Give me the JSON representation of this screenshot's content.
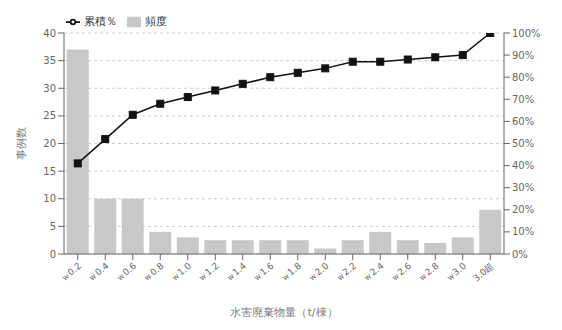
{
  "chart_data": {
    "type": "bar",
    "categories": [
      "ｗ0.2",
      "ｗ0.4",
      "ｗ0.6",
      "ｗ0.8",
      "ｗ1.0",
      "ｗ1.2",
      "ｗ1.4",
      "ｗ1.6",
      "ｗ1.8",
      "ｗ2.0",
      "ｗ2.2",
      "ｗ2.4",
      "ｗ2.6",
      "ｗ2.8",
      "ｗ3.0",
      "3.0超"
    ],
    "series": [
      {
        "name": "頻度",
        "type": "bar",
        "color": "#c8c8c8",
        "values": [
          37,
          10,
          10,
          4,
          3,
          2.5,
          2.5,
          2.5,
          2.5,
          1,
          2.5,
          4,
          2.5,
          2,
          3,
          8
        ]
      },
      {
        "name": "累積％",
        "type": "line",
        "axis": "y2",
        "color": "#111111",
        "marker": "square",
        "values": [
          41,
          52,
          63,
          68,
          71,
          74,
          77,
          80,
          82,
          84,
          87,
          87,
          88,
          89,
          90,
          100
        ]
      }
    ],
    "xlabel": "水害廃棄物量（t/棟）",
    "ylabel": "事例数",
    "ylim": [
      0,
      40
    ],
    "yticks": [
      0,
      5,
      10,
      15,
      20,
      25,
      30,
      35,
      40
    ],
    "y2lim": [
      0,
      100
    ],
    "y2ticks": [
      {
        "value": 0,
        "label": "0%"
      },
      {
        "value": 10,
        "label": "10%"
      },
      {
        "value": 20,
        "label": "20%"
      },
      {
        "value": 30,
        "label": "30%"
      },
      {
        "value": 40,
        "label": "40%"
      },
      {
        "value": 50,
        "label": "50%"
      },
      {
        "value": 60,
        "label": "60%"
      },
      {
        "value": 70,
        "label": "70%"
      },
      {
        "value": 80,
        "label": "80%"
      },
      {
        "value": 90,
        "label": "90%"
      },
      {
        "value": 100,
        "label": "100%"
      }
    ],
    "grid": true,
    "legend": "upper left"
  }
}
